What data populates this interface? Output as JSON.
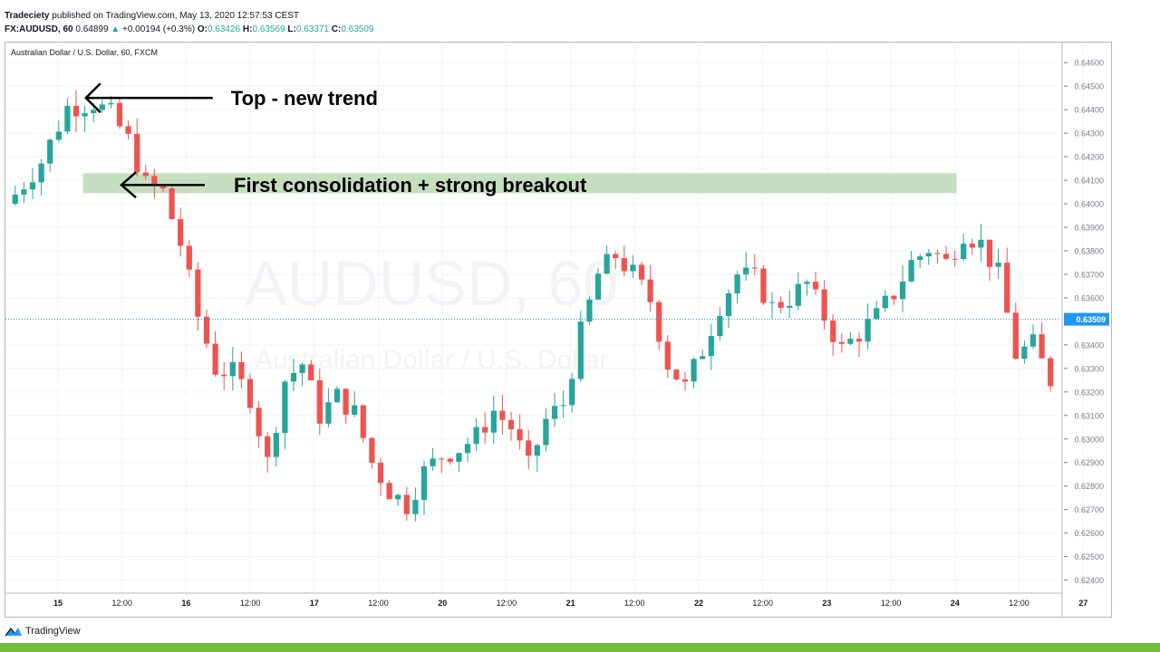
{
  "header": {
    "publisher": "Tradeciety",
    "published_text": "published on TradingView.com, May 13, 2020 12:57:53 CEST",
    "symbol": "FX:AUDUSD, 60",
    "last": "0.64899",
    "change_arrow": "▲",
    "change": "+0.00194 (+0.3%)",
    "o_label": "O:",
    "o": "0.63426",
    "h_label": "H:",
    "h": "0.63569",
    "l_label": "L:",
    "l": "0.63371",
    "c_label": "C:",
    "c": "0.63509"
  },
  "footer": {
    "logo_text": "TradingView",
    "logo_icon": "tradingview-logo-icon"
  },
  "colors": {
    "up": "#26a69a",
    "down": "#ef5350",
    "zone": "#b7d7b0",
    "price_line": "#2196f3",
    "footer_bar": "#6fbf3b"
  },
  "chart_data": {
    "type": "candlestick",
    "title": "Australian Dollar / U.S. Dollar, 60, FXCM",
    "watermark_main": "AUDUSD, 60",
    "watermark_sub": "Australian Dollar / U.S. Dollar",
    "y_ticks": [
      "0.64600",
      "0.64500",
      "0.64400",
      "0.64300",
      "0.64200",
      "0.64100",
      "0.64000",
      "0.63900",
      "0.63800",
      "0.63700",
      "0.63600",
      "0.63400",
      "0.63300",
      "0.63200",
      "0.63100",
      "0.63000",
      "0.62900",
      "0.62800",
      "0.62700",
      "0.62600",
      "0.62500",
      "0.62400"
    ],
    "ylim": [
      0.6236,
      0.6467
    ],
    "current_price": "0.63509",
    "x_ticks": [
      "15",
      "12:00",
      "16",
      "12:00",
      "17",
      "12:00",
      "20",
      "12:00",
      "21",
      "12:00",
      "22",
      "12:00",
      "23",
      "12:00",
      "24",
      "12:00",
      "27"
    ],
    "bars": 120,
    "close_path": [
      [
        0,
        0.6404
      ],
      [
        3,
        0.6418
      ],
      [
        6,
        0.6441
      ],
      [
        9,
        0.6443
      ],
      [
        11,
        0.6438
      ],
      [
        13,
        0.6427
      ],
      [
        15,
        0.6408
      ],
      [
        17,
        0.6405
      ],
      [
        19,
        0.6383
      ],
      [
        21,
        0.6352
      ],
      [
        23,
        0.633
      ],
      [
        25,
        0.6328
      ],
      [
        27,
        0.6318
      ],
      [
        29,
        0.629
      ],
      [
        31,
        0.6325
      ],
      [
        33,
        0.6332
      ],
      [
        35,
        0.631
      ],
      [
        37,
        0.6318
      ],
      [
        39,
        0.6311
      ],
      [
        41,
        0.629
      ],
      [
        43,
        0.6278
      ],
      [
        45,
        0.6272
      ],
      [
        47,
        0.6286
      ],
      [
        49,
        0.6293
      ],
      [
        51,
        0.6296
      ],
      [
        53,
        0.6301
      ],
      [
        55,
        0.6312
      ],
      [
        57,
        0.6305
      ],
      [
        59,
        0.6288
      ],
      [
        61,
        0.6308
      ],
      [
        63,
        0.6315
      ],
      [
        65,
        0.6345
      ],
      [
        67,
        0.637
      ],
      [
        69,
        0.6378
      ],
      [
        71,
        0.637
      ],
      [
        73,
        0.6359
      ],
      [
        75,
        0.6332
      ],
      [
        77,
        0.6322
      ],
      [
        79,
        0.6338
      ],
      [
        81,
        0.6357
      ],
      [
        83,
        0.637
      ],
      [
        85,
        0.6368
      ],
      [
        87,
        0.6356
      ],
      [
        89,
        0.636
      ],
      [
        91,
        0.6366
      ],
      [
        93,
        0.6352
      ],
      [
        95,
        0.6338
      ],
      [
        97,
        0.6345
      ],
      [
        99,
        0.6352
      ],
      [
        101,
        0.6362
      ],
      [
        103,
        0.6375
      ],
      [
        105,
        0.6381
      ],
      [
        107,
        0.6375
      ],
      [
        109,
        0.6388
      ],
      [
        111,
        0.6383
      ],
      [
        113,
        0.637
      ],
      [
        115,
        0.6336
      ],
      [
        117,
        0.634
      ],
      [
        119,
        0.6325
      ]
    ],
    "zone": {
      "from_bar": 8,
      "to_bar": 108,
      "low": 0.64045,
      "high": 0.6413
    },
    "annotations": [
      {
        "text": "Top - new trend",
        "bar": 7.5,
        "price": 0.6445
      },
      {
        "text": "First consolidation + strong breakout",
        "bar": 12,
        "price": 0.6408
      }
    ]
  }
}
